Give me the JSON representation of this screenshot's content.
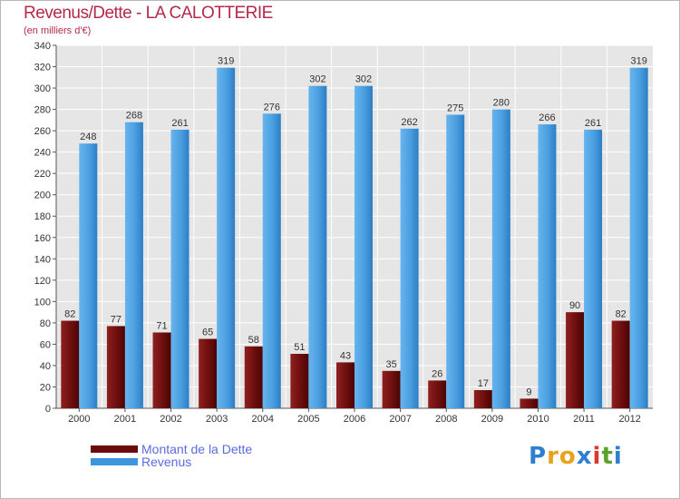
{
  "header": {
    "title": "Revenus/Dette - LA CALOTTERIE",
    "subtitle": "(en milliers d'€)"
  },
  "chart_data": {
    "type": "bar",
    "title": "Revenus/Dette - LA CALOTTERIE",
    "subtitle": "(en milliers d'€)",
    "xlabel": "",
    "ylabel": "",
    "ylim": [
      0,
      340
    ],
    "ytick_step": 20,
    "grid": true,
    "legend_position": "bottom-left",
    "categories": [
      "2000",
      "2001",
      "2002",
      "2003",
      "2004",
      "2005",
      "2006",
      "2007",
      "2008",
      "2009",
      "2010",
      "2011",
      "2012"
    ],
    "series": [
      {
        "name": "Montant de la Dette",
        "color": "#7a1010",
        "values": [
          82,
          77,
          71,
          65,
          58,
          51,
          43,
          35,
          26,
          17,
          9,
          90,
          82
        ]
      },
      {
        "name": "Revenus",
        "color": "#4a9fe0",
        "values": [
          248,
          268,
          261,
          319,
          276,
          302,
          302,
          262,
          275,
          280,
          266,
          261,
          319
        ]
      }
    ]
  },
  "legend": {
    "items": [
      {
        "label": "Montant de la Dette",
        "color": "#6b0a0a"
      },
      {
        "label": "Revenus",
        "color": "#3d95dd"
      }
    ]
  },
  "logo": {
    "letters": [
      "P",
      "r",
      "o",
      "x",
      "i",
      "t",
      "i"
    ],
    "colors": [
      "#2f7fd0",
      "#e8a21b",
      "#e8a21b",
      "#2f7fd0",
      "#d83b2a",
      "#5aa32b",
      "#2f7fd0"
    ]
  }
}
